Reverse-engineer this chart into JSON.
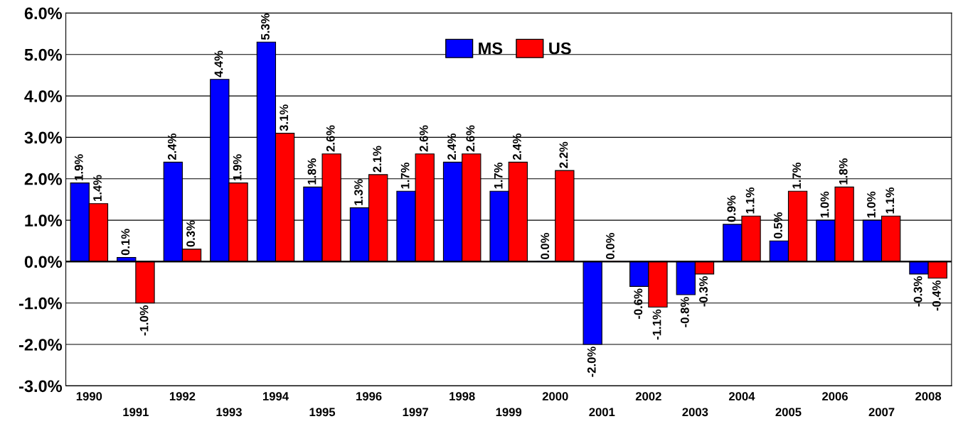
{
  "chart_data": {
    "type": "bar",
    "categories": [
      "1990",
      "1991",
      "1992",
      "1993",
      "1994",
      "1995",
      "1996",
      "1997",
      "1998",
      "1999",
      "2000",
      "2001",
      "2002",
      "2003",
      "2004",
      "2005",
      "2006",
      "2007",
      "2008"
    ],
    "series": [
      {
        "name": "MS",
        "color": "#0000ff",
        "values": [
          1.9,
          0.1,
          2.4,
          4.4,
          5.3,
          1.8,
          1.3,
          1.7,
          2.4,
          1.7,
          0.0,
          -2.0,
          -0.6,
          -0.8,
          0.9,
          0.5,
          1.0,
          1.0,
          -0.3
        ],
        "value_labels": [
          "1.9%",
          "0.1%",
          "2.4%",
          "4.4%",
          "5.3%",
          "1.8%",
          "1.3%",
          "1.7%",
          "2.4%",
          "1.7%",
          "0.0%",
          "-2.0%",
          "-0.6%",
          "-0.8%",
          "0.9%",
          "0.5%",
          "1.0%",
          "1.0%",
          "-0.3%"
        ]
      },
      {
        "name": "US",
        "color": "#ff0000",
        "values": [
          1.4,
          -1.0,
          0.3,
          1.9,
          3.1,
          2.6,
          2.1,
          2.6,
          2.6,
          2.4,
          2.2,
          0.0,
          -1.1,
          -0.3,
          1.1,
          1.7,
          1.8,
          1.1,
          -0.4
        ],
        "value_labels": [
          "1.4%",
          "-1.0%",
          "0.3%",
          "1.9%",
          "3.1%",
          "2.6%",
          "2.1%",
          "2.6%",
          "2.6%",
          "2.4%",
          "2.2%",
          "0.0%",
          "-1.1%",
          "-0.3%",
          "1.1%",
          "1.7%",
          "1.8%",
          "1.1%",
          "-0.4%"
        ]
      }
    ],
    "ylim": [
      -3,
      6
    ],
    "yticks": [
      {
        "value": -3,
        "label": "-3.0%"
      },
      {
        "value": -2,
        "label": "-2.0%"
      },
      {
        "value": -1,
        "label": "-1.0%"
      },
      {
        "value": 0,
        "label": "0.0%"
      },
      {
        "value": 1,
        "label": "1.0%"
      },
      {
        "value": 2,
        "label": "2.0%"
      },
      {
        "value": 3,
        "label": "3.0%"
      },
      {
        "value": 4,
        "label": "4.0%"
      },
      {
        "value": 5,
        "label": "5.0%"
      },
      {
        "value": 6,
        "label": "6.0%"
      }
    ],
    "grid": "y",
    "legend": "top"
  }
}
